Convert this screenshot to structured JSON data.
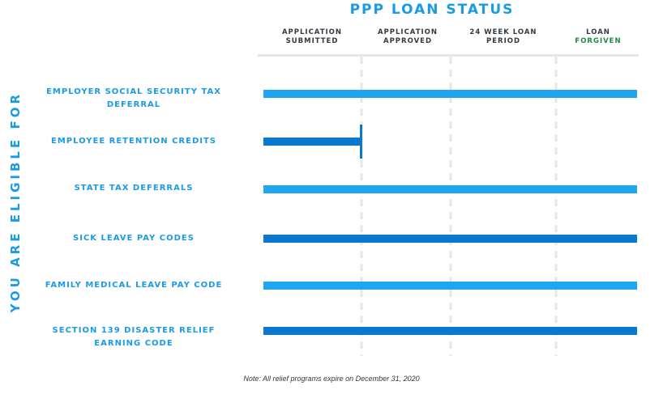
{
  "chart_data": {
    "type": "gantt",
    "title": "PPP LOAN STATUS",
    "side_label": "YOU ARE ELIGIBLE FOR",
    "stages": [
      {
        "line1": "APPLICATION",
        "line2": "SUBMITTED",
        "line2_color": "#333a40"
      },
      {
        "line1": "APPLICATION",
        "line2": "APPROVED",
        "line2_color": "#333a40"
      },
      {
        "line1": "24 WEEK LOAN",
        "line2": "PERIOD",
        "line2_color": "#333a40"
      },
      {
        "line1": "LOAN",
        "line2": "FORGIVEN",
        "line2_color": "#1f8a3e"
      }
    ],
    "programs": [
      {
        "lines": [
          "EMPLOYER SOCIAL SECURITY TAX",
          "DEFERRAL"
        ],
        "start": 0,
        "end": 4,
        "end_cap": false,
        "color": "#1ea6f2"
      },
      {
        "lines": [
          "EMPLOYEE RETENTION CREDITS"
        ],
        "start": 0,
        "end": 1,
        "end_cap": true,
        "color": "#0b78cf"
      },
      {
        "lines": [
          "STATE TAX DEFERRALS"
        ],
        "start": 0,
        "end": 4,
        "end_cap": false,
        "color": "#1ea6f2"
      },
      {
        "lines": [
          "SICK LEAVE PAY CODES"
        ],
        "start": 0,
        "end": 4,
        "end_cap": false,
        "color": "#0b78cf"
      },
      {
        "lines": [
          "FAMILY MEDICAL LEAVE PAY CODE"
        ],
        "start": 0,
        "end": 4,
        "end_cap": false,
        "color": "#1ea6f2"
      },
      {
        "lines": [
          "SECTION 139 DISASTER RELIEF",
          "EARNING CODE"
        ],
        "start": 0,
        "end": 4,
        "end_cap": false,
        "color": "#0b78cf"
      }
    ],
    "note": "Note: All relief programs expire on December 31, 2020",
    "grid_color": "#e6e6e6"
  }
}
